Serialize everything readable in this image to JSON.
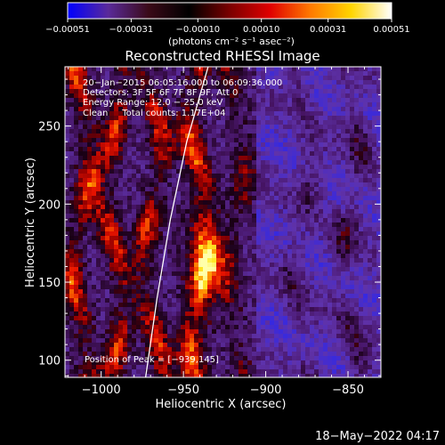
{
  "chart_data": {
    "type": "heatmap",
    "title": "Reconstructed RHESSI Image",
    "xlabel": "Heliocentric X (arcsec)",
    "ylabel": "Heliocentric Y (arcsec)",
    "xlim": [
      -1022,
      -830
    ],
    "ylim": [
      89,
      288
    ],
    "x_ticks": [
      {
        "value": -1000,
        "label": "−1000"
      },
      {
        "value": -950,
        "label": "−950"
      },
      {
        "value": -900,
        "label": "−900"
      },
      {
        "value": -850,
        "label": "−850"
      }
    ],
    "y_ticks": [
      {
        "value": 100,
        "label": "100"
      },
      {
        "value": 150,
        "label": "150"
      },
      {
        "value": 200,
        "label": "200"
      },
      {
        "value": 250,
        "label": "250"
      }
    ],
    "colorbar": {
      "min": -0.00051,
      "max": 0.00051,
      "ticks": [
        {
          "value": -0.00051,
          "label": "−0.00051"
        },
        {
          "value": -0.00031,
          "label": "−0.00031"
        },
        {
          "value": -0.0001,
          "label": "−0.00010"
        },
        {
          "value": 0.0001,
          "label": "0.00010"
        },
        {
          "value": 0.00031,
          "label": "0.00031"
        },
        {
          "value": 0.00051,
          "label": "0.00051"
        }
      ],
      "units_label": "(photons cm⁻² s⁻¹ asec⁻²)",
      "colors": [
        "#0000ff",
        "#5a2a9a",
        "#3a0a18",
        "#000000",
        "#7a0000",
        "#e00000",
        "#ff7a00",
        "#ffd400",
        "#ffffff"
      ]
    },
    "annotations": [
      "20−Jan−2015 06:05:16.000 to 06:09:36.000",
      "Detectors: 3F 5F 6F 7F 8F 9F, Att 0",
      "Energy Range: 12.0 − 25.0 keV",
      "Clean     Total counts: 1.17E+04"
    ],
    "peak_label": "Position of Peak = [−939,145]",
    "limb_curve": [
      {
        "x": -973,
        "y": 89
      },
      {
        "x": -966,
        "y": 140
      },
      {
        "x": -958,
        "y": 190
      },
      {
        "x": -948,
        "y": 240
      },
      {
        "x": -935,
        "y": 288
      }
    ]
  },
  "footer": {
    "timestamp": "18−May−2022 04:17"
  }
}
